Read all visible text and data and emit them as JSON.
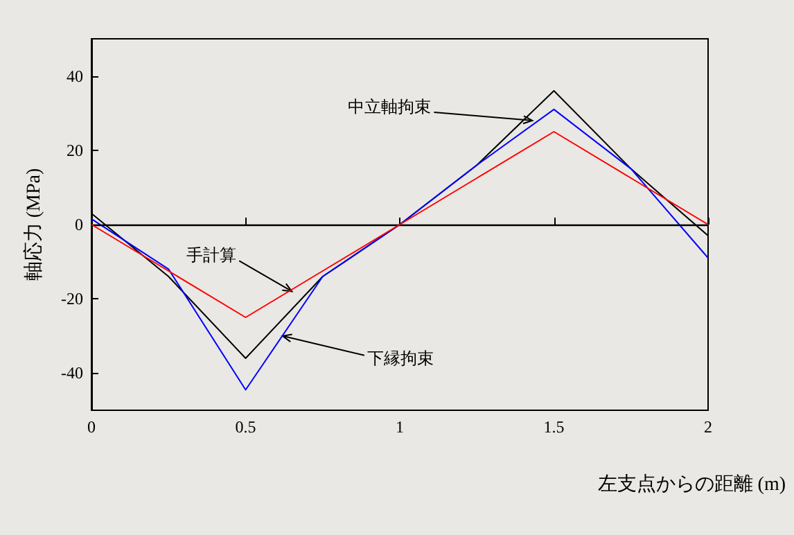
{
  "chart_data": {
    "type": "line",
    "xlabel": "左支点からの距離 (m)",
    "ylabel": "軸応力 (MPa)",
    "x": [
      0,
      0.25,
      0.5,
      0.75,
      1,
      1.25,
      1.5,
      1.75,
      2
    ],
    "series": [
      {
        "color": "#000000",
        "values": [
          3,
          -14,
          -36,
          -14,
          0,
          16,
          36,
          15,
          -3
        ]
      },
      {
        "color": "#0000ff",
        "values": [
          1.5,
          -12,
          -44.5,
          -14,
          0,
          16,
          31,
          15,
          -9
        ]
      },
      {
        "color": "#ff0000",
        "values": [
          0,
          -12.5,
          -25,
          -12.5,
          0,
          12.5,
          25,
          12.5,
          0
        ]
      }
    ],
    "xlim": [
      0,
      2
    ],
    "xticks": [
      0,
      0.5,
      1,
      1.5,
      2
    ],
    "ylim": [
      -50,
      50
    ],
    "yticks": [
      -40,
      -20,
      0,
      20,
      40
    ],
    "ref_lines": [
      {
        "axis": "y",
        "value": 0,
        "color": "#000000"
      }
    ],
    "annotations": [
      {
        "text": "中立軸拘束",
        "x": 1.43,
        "y": 28
      },
      {
        "text": "手計算",
        "x": 0.65,
        "y": -18
      },
      {
        "text": "下縁拘束",
        "x": 0.62,
        "y": -30
      }
    ],
    "grid": false,
    "marker": "none",
    "line_style": "solid"
  }
}
